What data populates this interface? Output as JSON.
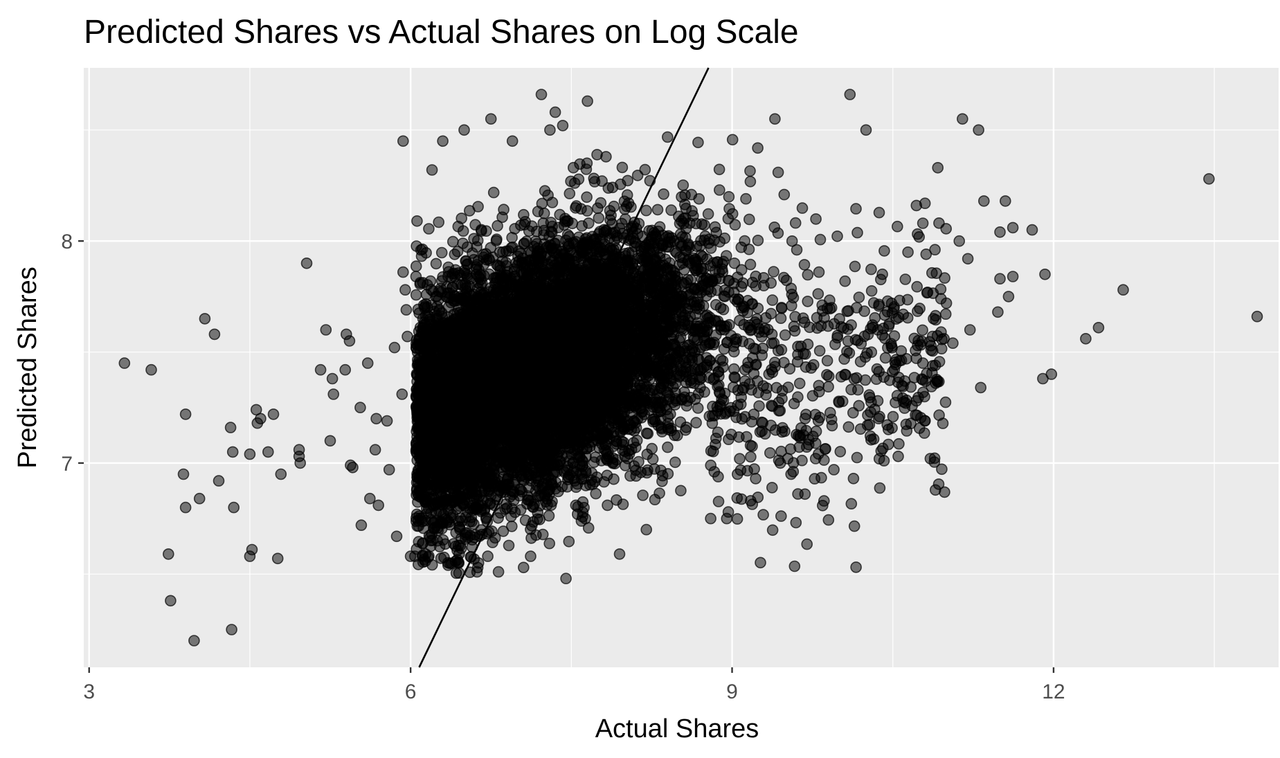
{
  "chart_data": {
    "type": "scatter",
    "title": "Predicted Shares vs Actual Shares on Log Scale",
    "xlabel": "Actual Shares",
    "ylabel": "Predicted Shares",
    "xlim": [
      2.95,
      14.1
    ],
    "ylim": [
      6.08,
      8.78
    ],
    "x_ticks": [
      3,
      6,
      9,
      12
    ],
    "x_tick_labels": [
      "3",
      "6",
      "9",
      "12"
    ],
    "y_ticks": [
      7,
      8
    ],
    "y_tick_labels": [
      "7",
      "8"
    ],
    "x_minor_grid": [
      4.5,
      7.5,
      10.5,
      13.5
    ],
    "y_minor_grid": [
      6.5,
      7.5,
      8.5
    ],
    "grid": true,
    "reference_line": {
      "type": "identity",
      "slope": 1,
      "intercept": 0
    },
    "colors": {
      "panel_background": "#ebebeb",
      "grid": "#ffffff",
      "points": "#000000",
      "line": "#000000"
    },
    "point_opacity": 0.5,
    "outlier_points": [
      [
        3.33,
        7.45
      ],
      [
        3.58,
        7.42
      ],
      [
        3.74,
        6.59
      ],
      [
        3.76,
        6.38
      ],
      [
        3.88,
        6.95
      ],
      [
        3.9,
        7.22
      ],
      [
        3.9,
        6.8
      ],
      [
        3.98,
        6.2
      ],
      [
        4.03,
        6.84
      ],
      [
        4.08,
        7.65
      ],
      [
        4.17,
        7.58
      ],
      [
        4.21,
        6.92
      ],
      [
        4.32,
        7.16
      ],
      [
        4.33,
        6.25
      ],
      [
        4.34,
        7.05
      ],
      [
        4.35,
        6.8
      ],
      [
        4.5,
        6.58
      ],
      [
        4.5,
        7.04
      ],
      [
        4.52,
        6.61
      ],
      [
        4.56,
        7.24
      ],
      [
        4.57,
        7.18
      ],
      [
        4.6,
        7.2
      ],
      [
        4.67,
        7.05
      ],
      [
        4.72,
        7.22
      ],
      [
        4.76,
        6.57
      ],
      [
        4.79,
        6.95
      ],
      [
        4.96,
        7.06
      ],
      [
        4.96,
        7.03
      ],
      [
        4.97,
        7.0
      ],
      [
        5.03,
        7.9
      ],
      [
        5.16,
        7.42
      ],
      [
        5.21,
        7.6
      ],
      [
        5.25,
        7.1
      ],
      [
        5.27,
        7.38
      ],
      [
        5.28,
        7.31
      ],
      [
        5.39,
        7.42
      ],
      [
        5.4,
        7.58
      ],
      [
        5.43,
        7.55
      ],
      [
        5.44,
        6.99
      ],
      [
        5.46,
        6.98
      ],
      [
        5.53,
        7.25
      ],
      [
        5.54,
        6.72
      ],
      [
        5.6,
        7.45
      ],
      [
        5.62,
        6.84
      ],
      [
        5.67,
        7.06
      ],
      [
        5.68,
        7.2
      ],
      [
        5.7,
        6.81
      ],
      [
        5.78,
        7.19
      ],
      [
        5.8,
        6.97
      ],
      [
        5.85,
        7.52
      ],
      [
        5.87,
        6.67
      ],
      [
        5.92,
        7.31
      ],
      [
        5.93,
        8.45
      ],
      [
        5.93,
        7.86
      ],
      [
        5.95,
        7.78
      ],
      [
        5.96,
        7.69
      ],
      [
        5.97,
        7.57
      ],
      [
        6.0,
        6.58
      ],
      [
        6.04,
        6.58
      ],
      [
        6.06,
        8.09
      ],
      [
        6.05,
        7.84
      ],
      [
        6.2,
        8.32
      ],
      [
        6.25,
        6.65
      ],
      [
        6.35,
        6.54
      ],
      [
        6.45,
        6.55
      ],
      [
        6.62,
        6.51
      ],
      [
        6.72,
        6.58
      ],
      [
        6.82,
        6.51
      ],
      [
        7.12,
        6.58
      ],
      [
        7.45,
        6.48
      ],
      [
        7.95,
        6.59
      ],
      [
        8.2,
        6.7
      ],
      [
        8.8,
        6.75
      ],
      [
        8.95,
        6.75
      ],
      [
        9.05,
        6.95
      ],
      [
        9.22,
        6.93
      ],
      [
        9.45,
        7.0
      ],
      [
        9.55,
        6.95
      ],
      [
        9.68,
        6.86
      ],
      [
        9.95,
        6.97
      ],
      [
        7.22,
        8.66
      ],
      [
        7.35,
        8.58
      ],
      [
        7.65,
        8.63
      ],
      [
        7.3,
        8.5
      ],
      [
        7.42,
        8.52
      ],
      [
        6.95,
        8.45
      ],
      [
        6.5,
        8.5
      ],
      [
        6.3,
        8.45
      ],
      [
        6.75,
        8.55
      ],
      [
        9.4,
        8.55
      ],
      [
        10.1,
        8.66
      ],
      [
        10.25,
        8.5
      ],
      [
        11.15,
        8.55
      ],
      [
        11.3,
        8.5
      ],
      [
        13.45,
        8.28
      ],
      [
        11.5,
        8.04
      ],
      [
        11.55,
        8.18
      ],
      [
        11.62,
        8.06
      ],
      [
        11.8,
        8.05
      ],
      [
        11.92,
        7.85
      ],
      [
        11.5,
        7.83
      ],
      [
        11.62,
        7.84
      ],
      [
        11.58,
        7.75
      ],
      [
        11.48,
        7.68
      ],
      [
        11.22,
        7.6
      ],
      [
        11.9,
        7.38
      ],
      [
        11.98,
        7.4
      ],
      [
        12.3,
        7.56
      ],
      [
        12.42,
        7.61
      ],
      [
        12.65,
        7.78
      ],
      [
        13.9,
        7.66
      ],
      [
        11.32,
        7.34
      ],
      [
        11.06,
        7.54
      ],
      [
        10.9,
        7.36
      ],
      [
        10.72,
        7.28
      ],
      [
        10.78,
        7.45
      ],
      [
        10.8,
        7.19
      ],
      [
        10.85,
        7.02
      ],
      [
        10.55,
        7.03
      ],
      [
        10.62,
        7.27
      ],
      [
        10.95,
        7.59
      ],
      [
        11.0,
        7.72
      ],
      [
        10.88,
        7.65
      ],
      [
        10.8,
        8.17
      ],
      [
        10.92,
        8.33
      ],
      [
        11.12,
        8.0
      ],
      [
        11.2,
        7.92
      ],
      [
        11.35,
        8.18
      ],
      [
        10.78,
        8.08
      ],
      [
        10.72,
        8.16
      ]
    ],
    "cluster": {
      "shape": "bivariate-normal",
      "center": [
        7.15,
        7.42
      ],
      "sd_x": 0.75,
      "sd_y": 0.3,
      "correlation": 0.45,
      "point_count": 9000,
      "description_note": "dense overlapping cloud"
    }
  }
}
